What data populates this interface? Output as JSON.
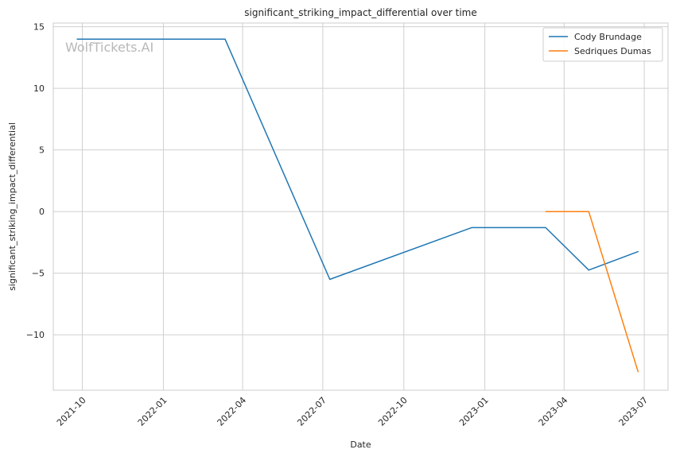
{
  "chart_data": {
    "type": "line",
    "title": "significant_striking_impact_differential over time",
    "xlabel": "Date",
    "ylabel": "significant_striking_impact_differential",
    "watermark": "WolfTickets.AI",
    "ylim": [
      -14.5,
      15.3
    ],
    "xlim": [
      "2021-08-29",
      "2023-07-28"
    ],
    "yticks": [
      15,
      10,
      5,
      0,
      -5,
      -10
    ],
    "ytick_labels": [
      "15",
      "10",
      "5",
      "0",
      "−5",
      "−10"
    ],
    "xticks": [
      "2021-10-01",
      "2022-01-01",
      "2022-04-01",
      "2022-07-01",
      "2022-10-01",
      "2023-01-01",
      "2023-04-01",
      "2023-07-01"
    ],
    "xtick_labels": [
      "2021-10",
      "2022-01",
      "2022-04",
      "2022-07",
      "2022-10",
      "2023-01",
      "2023-04",
      "2023-07"
    ],
    "grid": true,
    "legend_position": "top-right",
    "series": [
      {
        "name": "Cody Brundage",
        "color": "#1f77b4",
        "x": [
          "2021-09-25",
          "2022-03-12",
          "2022-07-09",
          "2022-12-17",
          "2023-03-11",
          "2023-04-29",
          "2023-06-24"
        ],
        "y": [
          14.0,
          14.0,
          -5.5,
          -1.3,
          -1.3,
          -4.75,
          -3.25
        ]
      },
      {
        "name": "Sedriques Dumas",
        "color": "#ff7f0e",
        "x": [
          "2023-03-11",
          "2023-04-29",
          "2023-06-24"
        ],
        "y": [
          0.0,
          0.0,
          -13.0
        ]
      }
    ]
  }
}
